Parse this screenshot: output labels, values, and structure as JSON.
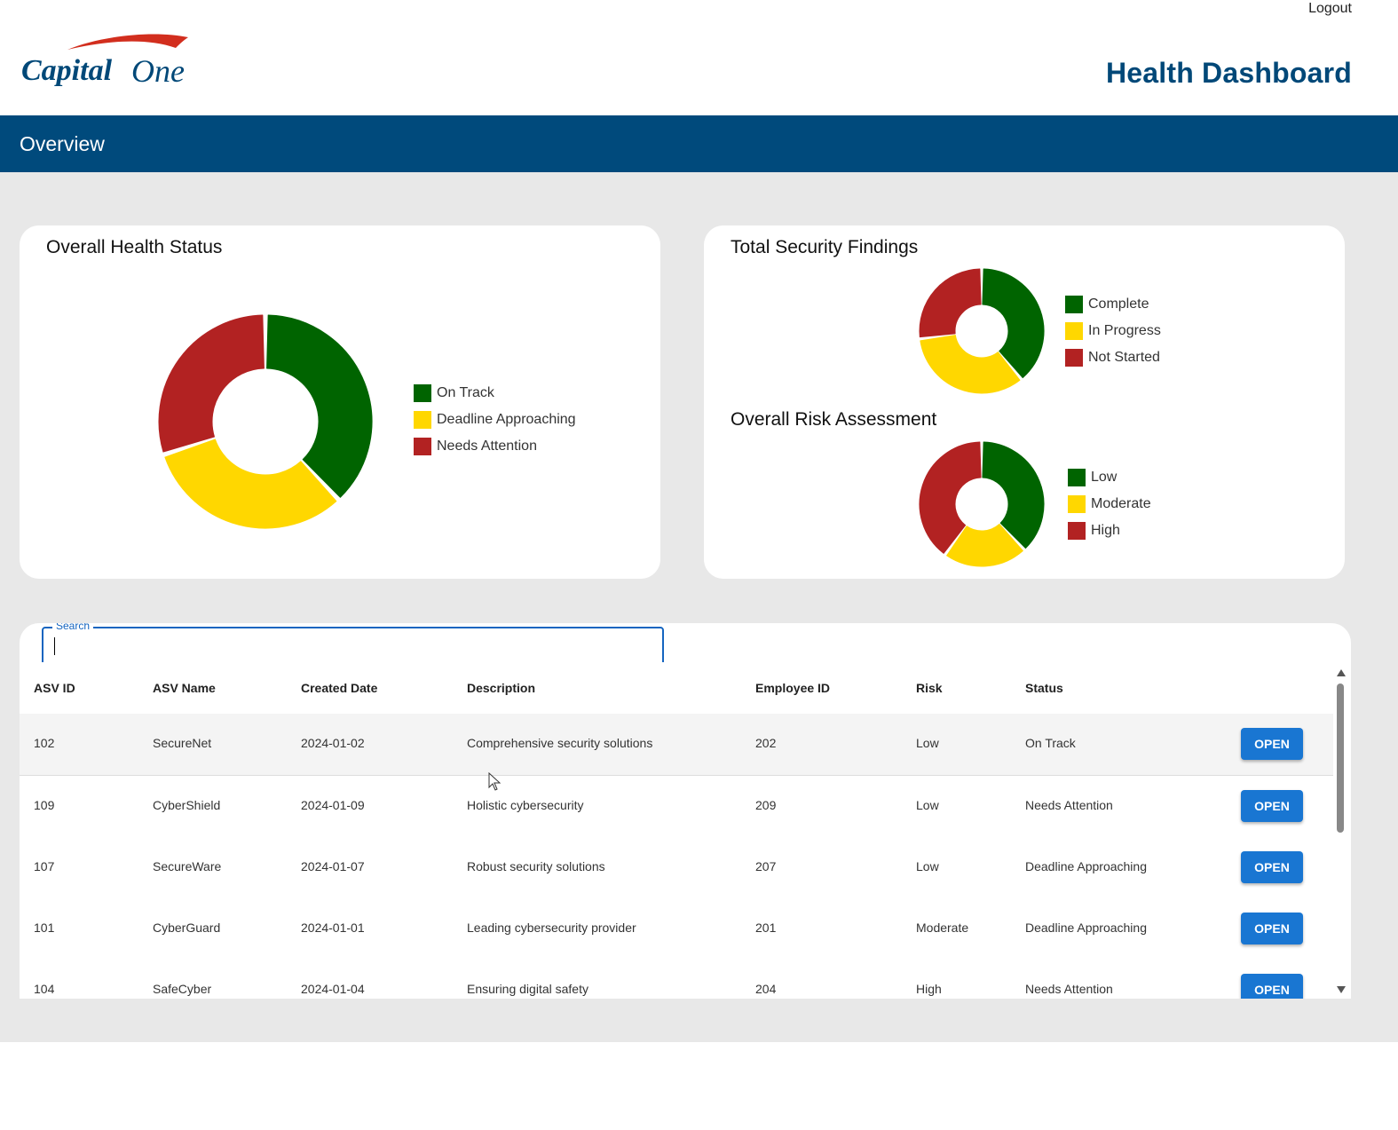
{
  "header": {
    "logout_label": "Logout",
    "logo_text_capital": "Capital",
    "logo_text_one": "One",
    "title": "Health Dashboard"
  },
  "nav": {
    "title": "Overview"
  },
  "colors": {
    "brand_blue": "#004a7c",
    "title_blue": "#004878",
    "green": "#006400",
    "yellow": "#ffd700",
    "red": "#b22222",
    "button_blue": "#1976d2"
  },
  "health_card": {
    "title": "Overall Health Status"
  },
  "findings_card": {
    "title": "Total Security Findings"
  },
  "risk_card": {
    "title": "Overall Risk Assessment"
  },
  "chart_data": [
    {
      "type": "pie",
      "title": "Overall Health Status",
      "categories": [
        "On Track",
        "Deadline Approaching",
        "Needs Attention"
      ],
      "values": [
        38,
        32,
        30
      ],
      "colors": [
        "#006400",
        "#ffd700",
        "#b22222"
      ],
      "legend": "right"
    },
    {
      "type": "pie",
      "title": "Total Security Findings",
      "categories": [
        "Complete",
        "In Progress",
        "Not Started"
      ],
      "values": [
        39,
        34,
        27
      ],
      "colors": [
        "#006400",
        "#ffd700",
        "#b22222"
      ],
      "legend": "right"
    },
    {
      "type": "pie",
      "title": "Overall Risk Assessment",
      "categories": [
        "Low",
        "Moderate",
        "High"
      ],
      "values": [
        38,
        22,
        40
      ],
      "colors": [
        "#006400",
        "#ffd700",
        "#b22222"
      ],
      "legend": "right"
    }
  ],
  "search": {
    "label": "Search",
    "value": ""
  },
  "table": {
    "columns": [
      "ASV ID",
      "ASV Name",
      "Created Date",
      "Description",
      "Employee ID",
      "Risk",
      "Status"
    ],
    "button_label": "OPEN",
    "rows": [
      {
        "asv_id": "102",
        "asv_name": "SecureNet",
        "created": "2024-01-02",
        "description": "Comprehensive security solutions",
        "employee_id": "202",
        "risk": "Low",
        "status": "On Track"
      },
      {
        "asv_id": "109",
        "asv_name": "CyberShield",
        "created": "2024-01-09",
        "description": "Holistic cybersecurity",
        "employee_id": "209",
        "risk": "Low",
        "status": "Needs Attention"
      },
      {
        "asv_id": "107",
        "asv_name": "SecureWare",
        "created": "2024-01-07",
        "description": "Robust security solutions",
        "employee_id": "207",
        "risk": "Low",
        "status": "Deadline Approaching"
      },
      {
        "asv_id": "101",
        "asv_name": "CyberGuard",
        "created": "2024-01-01",
        "description": "Leading cybersecurity provider",
        "employee_id": "201",
        "risk": "Moderate",
        "status": "Deadline Approaching"
      },
      {
        "asv_id": "104",
        "asv_name": "SafeCyber",
        "created": "2024-01-04",
        "description": "Ensuring digital safety",
        "employee_id": "204",
        "risk": "High",
        "status": "Needs Attention"
      }
    ]
  }
}
